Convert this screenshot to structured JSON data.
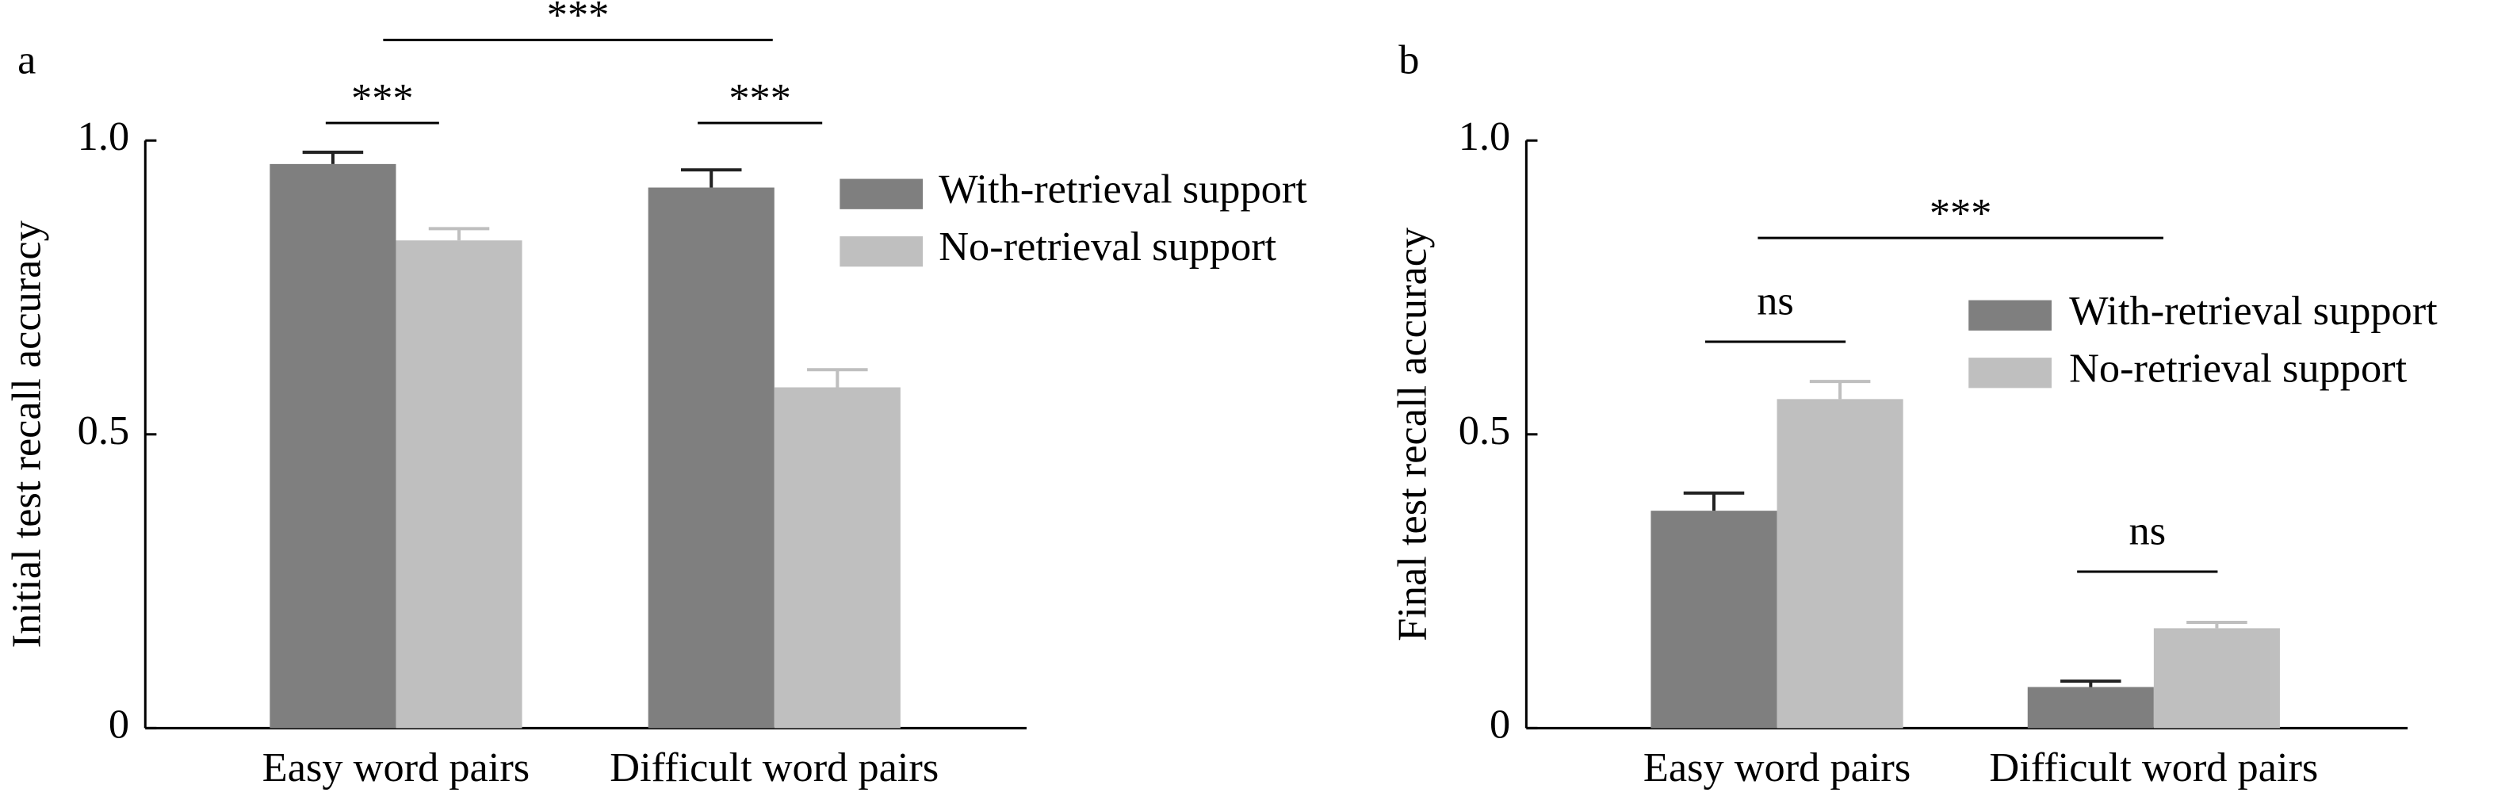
{
  "chart_data": [
    {
      "type": "bar",
      "panel_label": "a",
      "y_label": "Initial test recall accuracy",
      "categories": [
        "Easy word pairs",
        "Difficult word pairs"
      ],
      "series": [
        {
          "name": "With-retrieval support",
          "color": "#7f7f7f",
          "values": [
            0.96,
            0.92
          ],
          "errors": [
            0.02,
            0.03
          ]
        },
        {
          "name": "No-retrieval support",
          "color": "#bfbfbf",
          "values": [
            0.83,
            0.58
          ],
          "errors": [
            0.02,
            0.03
          ]
        }
      ],
      "ylim": [
        0,
        1
      ],
      "yticks": [
        0,
        0.5,
        {
          "value": 1,
          "label": "1.0"
        }
      ],
      "annotations": [
        {
          "text": "***"
        },
        {
          "text": "***"
        },
        {
          "text": "***"
        }
      ]
    },
    {
      "type": "bar",
      "panel_label": "b",
      "y_label": "Final test recall accuracy",
      "categories": [
        "Easy word pairs",
        "Difficult word pairs"
      ],
      "series": [
        {
          "name": "With-retrieval support",
          "color": "#7f7f7f",
          "values": [
            0.37,
            0.07
          ],
          "errors": [
            0.03,
            0.01
          ]
        },
        {
          "name": "No-retrieval support",
          "color": "#bfbfbf",
          "values": [
            0.56,
            0.17
          ],
          "errors": [
            0.03,
            0.01
          ]
        }
      ],
      "ylim": [
        0,
        1
      ],
      "yticks": [
        0,
        0.5,
        {
          "value": 1,
          "label": "1.0"
        }
      ],
      "annotations": [
        {
          "text": "***"
        },
        {
          "text": "ns"
        },
        {
          "text": "ns"
        }
      ]
    }
  ]
}
